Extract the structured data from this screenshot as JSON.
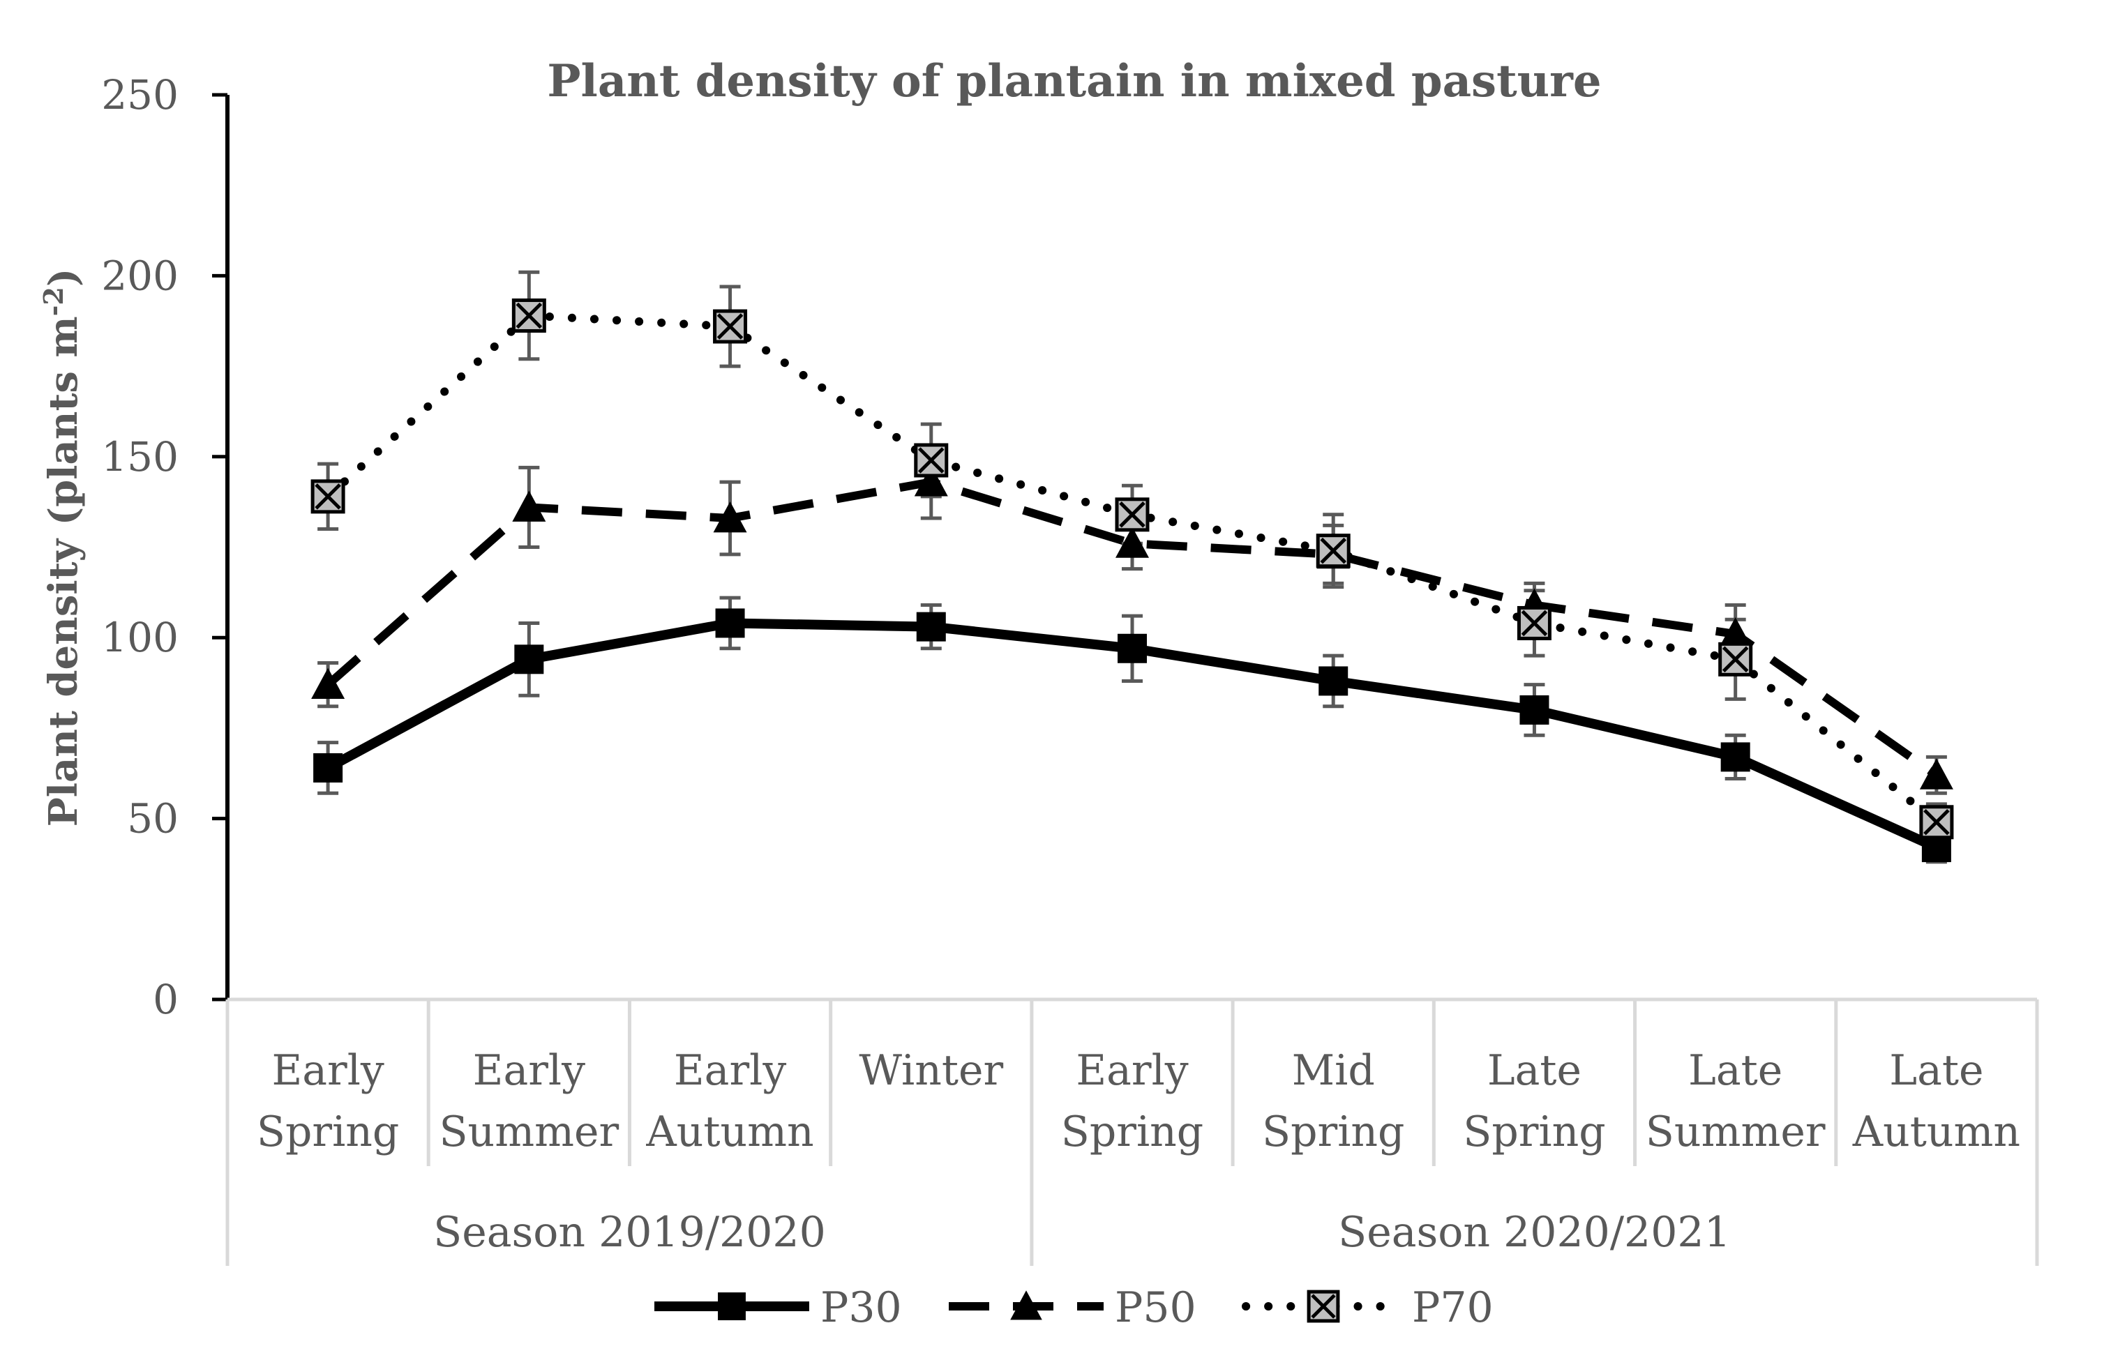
{
  "chart_data": {
    "type": "line",
    "title": "Plant density of plantain in mixed pasture",
    "ylabel": "Plant density (plants m",
    "ylabel_superscript": "-2",
    "ylabel_close": ")",
    "ylim": [
      0,
      250
    ],
    "yticks": [
      "0",
      "50",
      "100",
      "150",
      "200",
      "250"
    ],
    "ytick_values": [
      0,
      50,
      100,
      150,
      200,
      250
    ],
    "categories": [
      "Early Spring",
      "Early Summer",
      "Early Autumn",
      "Winter",
      "Early Spring",
      "Mid Spring",
      "Late Spring",
      "Late Summer",
      "Late Autumn"
    ],
    "category_labels": [
      [
        "Early",
        "Spring"
      ],
      [
        "Early",
        "Summer"
      ],
      [
        "Early",
        "Autumn"
      ],
      [
        "Winter"
      ],
      [
        "Early",
        "Spring"
      ],
      [
        "Mid",
        "Spring"
      ],
      [
        "Late",
        "Spring"
      ],
      [
        "Late",
        "Summer"
      ],
      [
        "Late",
        "Autumn"
      ]
    ],
    "groups": [
      {
        "label": "Season 2019/2020",
        "start": 0,
        "end": 3
      },
      {
        "label": "Season 2020/2021",
        "start": 4,
        "end": 8
      }
    ],
    "series": [
      {
        "name": "P30",
        "values": [
          64,
          94,
          104,
          103,
          97,
          88,
          80,
          67,
          42
        ],
        "errors": [
          7,
          10,
          7,
          6,
          9,
          7,
          7,
          6,
          4
        ],
        "line": "solid",
        "marker": "square"
      },
      {
        "name": "P50",
        "values": [
          87,
          136,
          133,
          143,
          126,
          123,
          109,
          101,
          62
        ],
        "errors": [
          6,
          11,
          10,
          10,
          7,
          8,
          6,
          8,
          5
        ],
        "line": "dashed",
        "marker": "triangle"
      },
      {
        "name": "P70",
        "values": [
          139,
          189,
          186,
          149,
          134,
          124,
          104,
          94,
          49
        ],
        "errors": [
          9,
          12,
          11,
          10,
          8,
          10,
          9,
          11,
          5
        ],
        "line": "dotted",
        "marker": "x-square"
      }
    ],
    "legend_position": "bottom",
    "grid": false,
    "colors": {
      "line": "#000000",
      "error_bar": "#595959",
      "marker_fill_p70": "#bfbfbf",
      "axis_text": "#595959",
      "axis_line_x": "#d9d9d9"
    }
  }
}
